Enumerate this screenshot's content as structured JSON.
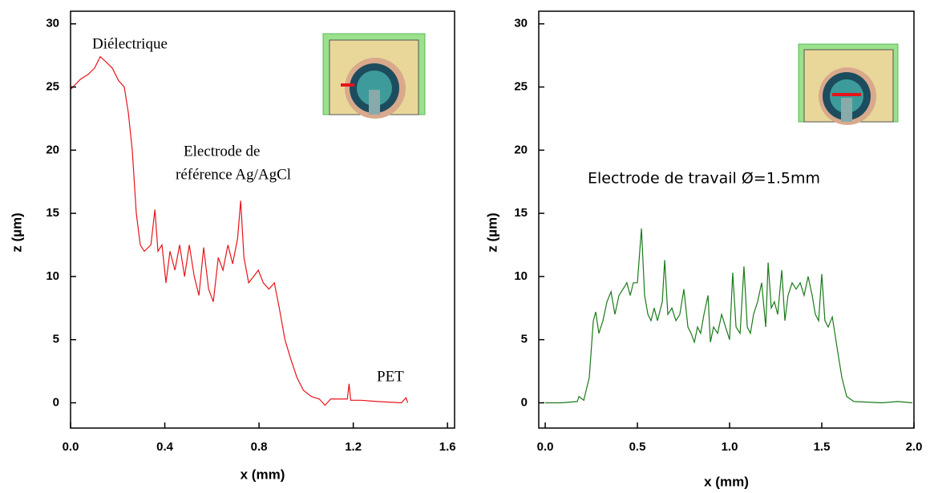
{
  "chart_data": [
    {
      "type": "line",
      "xlabel": "x (mm)",
      "ylabel": "z (µm)",
      "annotations": [
        "Diélectrique",
        "Electrode de",
        "référence Ag/AgCl",
        "PET"
      ],
      "xlim": [
        0,
        1.63
      ],
      "ylim": [
        -2,
        31
      ],
      "xticks": [
        {
          "value": 0,
          "label": "0.0"
        },
        {
          "value": 0.4,
          "label": "0.4"
        },
        {
          "value": 0.8,
          "label": "0.8"
        },
        {
          "value": 1.2,
          "label": "1.2"
        },
        {
          "value": 1.6,
          "label": "1.6"
        }
      ],
      "yticks": [
        0,
        5,
        10,
        15,
        20,
        25,
        30
      ],
      "x": [
        0,
        0.041,
        0.075,
        0.102,
        0.126,
        0.15,
        0.177,
        0.204,
        0.228,
        0.245,
        0.262,
        0.279,
        0.296,
        0.313,
        0.341,
        0.358,
        0.371,
        0.388,
        0.405,
        0.422,
        0.443,
        0.463,
        0.484,
        0.504,
        0.525,
        0.545,
        0.565,
        0.586,
        0.606,
        0.627,
        0.647,
        0.668,
        0.688,
        0.709,
        0.722,
        0.736,
        0.756,
        0.777,
        0.797,
        0.818,
        0.842,
        0.865,
        0.886,
        0.91,
        0.934,
        0.961,
        0.988,
        1.022,
        1.056,
        1.08,
        1.104,
        1.148,
        1.175,
        1.182,
        1.189,
        1.233,
        1.302,
        1.404,
        1.424,
        1.431
      ],
      "series": [
        {
          "color": "#e8141a",
          "values": [
            24.8,
            25.6,
            26,
            26.5,
            27.4,
            27,
            26.5,
            25.5,
            25,
            23,
            20,
            15,
            12.5,
            12,
            12.5,
            15.3,
            12,
            12.5,
            9.5,
            12,
            10.5,
            12.5,
            10,
            12.5,
            10,
            8.5,
            12.3,
            9,
            8,
            11.5,
            10.5,
            12.5,
            11,
            13,
            16,
            11.5,
            9.5,
            10,
            10.5,
            9.5,
            9,
            9.5,
            7.5,
            5,
            3.5,
            2,
            1,
            0.5,
            0.3,
            -0.2,
            0.3,
            0.3,
            0.3,
            1.5,
            0.2,
            0.2,
            0.1,
            0,
            0.4,
            0
          ]
        }
      ]
    },
    {
      "type": "line",
      "xlabel": "x (mm)",
      "ylabel": "z (µm)",
      "annotations": [
        "Electrode de travail Ø=1.5mm"
      ],
      "xlim": [
        -0.035,
        2.0
      ],
      "ylim": [
        -2,
        31
      ],
      "xticks": [
        {
          "value": 0,
          "label": "0.0"
        },
        {
          "value": 0.5,
          "label": "0.5"
        },
        {
          "value": 1,
          "label": "1.0"
        },
        {
          "value": 1.5,
          "label": "1.5"
        },
        {
          "value": 2,
          "label": "2.0"
        }
      ],
      "yticks": [
        0,
        5,
        10,
        15,
        20,
        25,
        30
      ],
      "x": [
        0,
        0.087,
        0.174,
        0.183,
        0.209,
        0.239,
        0.261,
        0.274,
        0.291,
        0.313,
        0.335,
        0.357,
        0.378,
        0.4,
        0.422,
        0.443,
        0.461,
        0.478,
        0.5,
        0.522,
        0.539,
        0.557,
        0.574,
        0.591,
        0.609,
        0.635,
        0.648,
        0.665,
        0.687,
        0.709,
        0.73,
        0.752,
        0.774,
        0.791,
        0.809,
        0.826,
        0.843,
        0.861,
        0.883,
        0.896,
        0.913,
        0.935,
        0.957,
        0.978,
        1.0,
        1.017,
        1.035,
        1.057,
        1.078,
        1.096,
        1.113,
        1.13,
        1.152,
        1.174,
        1.196,
        1.209,
        1.226,
        1.243,
        1.261,
        1.283,
        1.3,
        1.317,
        1.339,
        1.361,
        1.383,
        1.404,
        1.426,
        1.448,
        1.465,
        1.483,
        1.5,
        1.517,
        1.535,
        1.557,
        1.587,
        1.609,
        1.635,
        1.674,
        1.826,
        1.913,
        1.991
      ],
      "series": [
        {
          "color": "#1a7a1a",
          "values": [
            0,
            0,
            0.1,
            0.5,
            0.2,
            2,
            6.5,
            7.2,
            5.5,
            6.5,
            8,
            8.8,
            7,
            8.5,
            9,
            9.5,
            8.5,
            9.5,
            9.5,
            13.8,
            8.5,
            7,
            6.5,
            7.5,
            6.5,
            8,
            11.3,
            7,
            7.5,
            6.5,
            7,
            9,
            6,
            5.5,
            4.8,
            6,
            5.5,
            7,
            8.5,
            4.8,
            6,
            5.5,
            7,
            6,
            5,
            10.3,
            6,
            5.5,
            10.8,
            6,
            5.5,
            7,
            8,
            9.5,
            6,
            11.1,
            7.5,
            8,
            7,
            10.5,
            6.5,
            8.5,
            9.5,
            9,
            9.5,
            8.5,
            10,
            8.5,
            7,
            6.5,
            10.2,
            6.5,
            6,
            6.8,
            4,
            2,
            0.5,
            0.1,
            0,
            0.1,
            0
          ]
        }
      ]
    }
  ]
}
